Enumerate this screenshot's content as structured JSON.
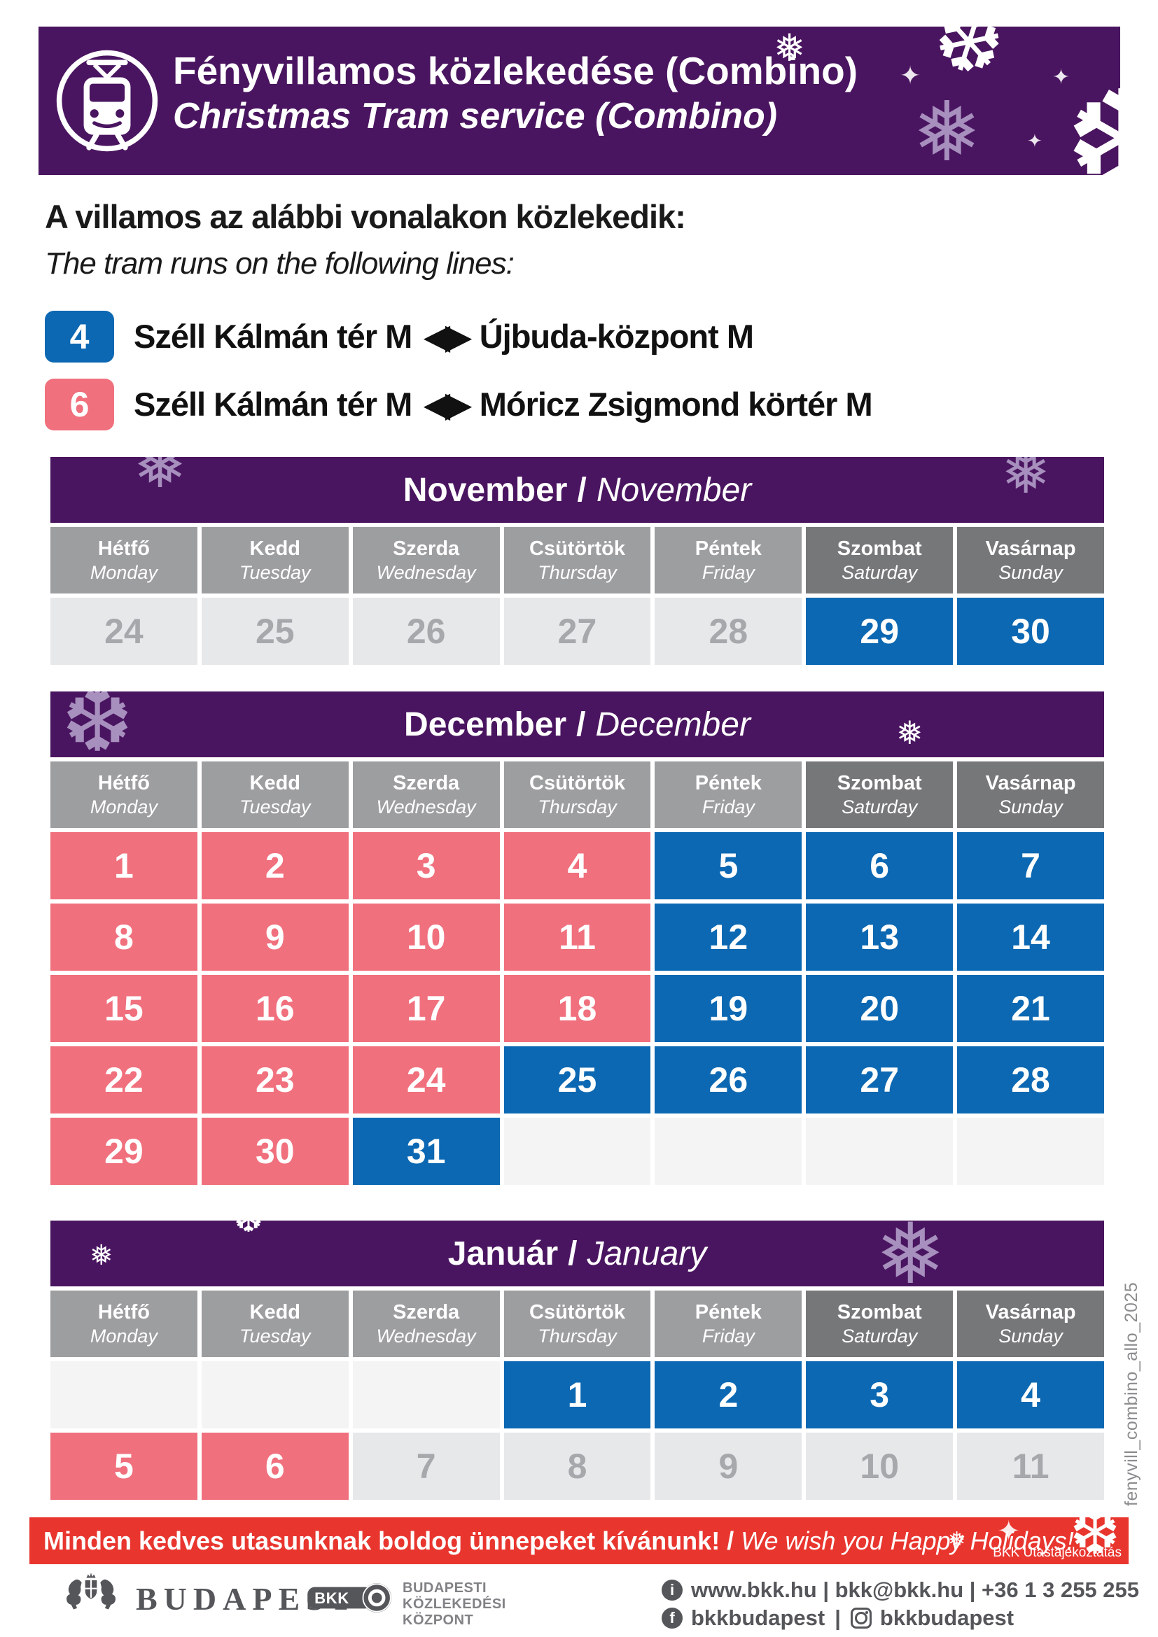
{
  "colors": {
    "purple": "#4A1560",
    "blue": "#0C68B2",
    "pink": "#F0707D",
    "red": "#E8362F",
    "header_gray": "#9D9EA0",
    "weekend_gray": "#767779",
    "inactive_bg": "#E7E8EA",
    "inactive_text": "#A6A8AC",
    "empty_bg": "#F4F4F5",
    "footer_gray": "#54565A",
    "lavender": "#A78FBE"
  },
  "icons": {
    "snowflake": "❅",
    "snowflake_alt": "❆",
    "sparkle": "✦",
    "tram": "tram-front-icon"
  },
  "header": {
    "title_hu": "Fényvillamos közlekedése (Combino)",
    "title_en": "Christmas Tram service (Combino)"
  },
  "intro": {
    "line_hu": "A villamos az alábbi vonalakon közlekedik:",
    "line_en": "The tram runs on the following lines:"
  },
  "lines": [
    {
      "number": "4",
      "from": "Széll Kálmán tér M",
      "arrow": "◀▶",
      "to": "Újbuda-központ M"
    },
    {
      "number": "6",
      "from": "Széll Kálmán tér M",
      "arrow": "◀▶",
      "to": "Móricz Zsigmond körtér M"
    }
  ],
  "day_headers": [
    {
      "hu": "Hétfő",
      "en": "Monday",
      "weekend": false
    },
    {
      "hu": "Kedd",
      "en": "Tuesday",
      "weekend": false
    },
    {
      "hu": "Szerda",
      "en": "Wednesday",
      "weekend": false
    },
    {
      "hu": "Csütörtök",
      "en": "Thursday",
      "weekend": false
    },
    {
      "hu": "Péntek",
      "en": "Friday",
      "weekend": false
    },
    {
      "hu": "Szombat",
      "en": "Saturday",
      "weekend": true
    },
    {
      "hu": "Vasárnap",
      "en": "Sunday",
      "weekend": true
    }
  ],
  "calendars": [
    {
      "id": "november",
      "title_hu": "November",
      "title_sep": "/",
      "title_en": "November",
      "rows": [
        [
          {
            "day": "24",
            "type": "inactive"
          },
          {
            "day": "25",
            "type": "inactive"
          },
          {
            "day": "26",
            "type": "inactive"
          },
          {
            "day": "27",
            "type": "inactive"
          },
          {
            "day": "28",
            "type": "inactive"
          },
          {
            "day": "29",
            "type": "blue"
          },
          {
            "day": "30",
            "type": "blue"
          }
        ]
      ]
    },
    {
      "id": "december",
      "title_hu": "December",
      "title_sep": "/",
      "title_en": "December",
      "rows": [
        [
          {
            "day": "1",
            "type": "pink"
          },
          {
            "day": "2",
            "type": "pink"
          },
          {
            "day": "3",
            "type": "pink"
          },
          {
            "day": "4",
            "type": "pink"
          },
          {
            "day": "5",
            "type": "blue"
          },
          {
            "day": "6",
            "type": "blue"
          },
          {
            "day": "7",
            "type": "blue"
          }
        ],
        [
          {
            "day": "8",
            "type": "pink"
          },
          {
            "day": "9",
            "type": "pink"
          },
          {
            "day": "10",
            "type": "pink"
          },
          {
            "day": "11",
            "type": "pink"
          },
          {
            "day": "12",
            "type": "blue"
          },
          {
            "day": "13",
            "type": "blue"
          },
          {
            "day": "14",
            "type": "blue"
          }
        ],
        [
          {
            "day": "15",
            "type": "pink"
          },
          {
            "day": "16",
            "type": "pink"
          },
          {
            "day": "17",
            "type": "pink"
          },
          {
            "day": "18",
            "type": "pink"
          },
          {
            "day": "19",
            "type": "blue"
          },
          {
            "day": "20",
            "type": "blue"
          },
          {
            "day": "21",
            "type": "blue"
          }
        ],
        [
          {
            "day": "22",
            "type": "pink"
          },
          {
            "day": "23",
            "type": "pink"
          },
          {
            "day": "24",
            "type": "pink"
          },
          {
            "day": "25",
            "type": "blue"
          },
          {
            "day": "26",
            "type": "blue"
          },
          {
            "day": "27",
            "type": "blue"
          },
          {
            "day": "28",
            "type": "blue"
          }
        ],
        [
          {
            "day": "29",
            "type": "pink"
          },
          {
            "day": "30",
            "type": "pink"
          },
          {
            "day": "31",
            "type": "blue"
          },
          {
            "day": "",
            "type": "empty"
          },
          {
            "day": "",
            "type": "empty"
          },
          {
            "day": "",
            "type": "empty"
          },
          {
            "day": "",
            "type": "empty"
          }
        ]
      ]
    },
    {
      "id": "january",
      "title_hu": "Január",
      "title_sep": "/",
      "title_en": "January",
      "rows": [
        [
          {
            "day": "",
            "type": "empty"
          },
          {
            "day": "",
            "type": "empty"
          },
          {
            "day": "",
            "type": "empty"
          },
          {
            "day": "1",
            "type": "blue"
          },
          {
            "day": "2",
            "type": "blue"
          },
          {
            "day": "3",
            "type": "blue"
          },
          {
            "day": "4",
            "type": "blue"
          }
        ],
        [
          {
            "day": "5",
            "type": "pink"
          },
          {
            "day": "6",
            "type": "pink"
          },
          {
            "day": "7",
            "type": "inactive"
          },
          {
            "day": "8",
            "type": "inactive"
          },
          {
            "day": "9",
            "type": "inactive"
          },
          {
            "day": "10",
            "type": "inactive"
          },
          {
            "day": "11",
            "type": "inactive"
          }
        ]
      ]
    }
  ],
  "red_banner": {
    "message_hu": "Minden kedves utasunknak boldog ünnepeket kívánunk!",
    "separator": "/",
    "message_en": "We wish you Happy Holidays!",
    "credit": "BKK Utastájékoztatás"
  },
  "footer": {
    "budapest_label": "BUDAPEST",
    "bkk_label": "BKK",
    "bkk_org_line1": "BUDAPESTI",
    "bkk_org_line2": "KÖZLEKEDÉSI",
    "bkk_org_line3": "KÖZPONT",
    "contact_line1": "www.bkk.hu | bkk@bkk.hu | +36 1 3 255 255",
    "facebook_handle": "bkkbudapest",
    "social_separator": "|",
    "instagram_handle": "bkkbudapest",
    "facebook_icon_letter": "f",
    "info_icon_letter": "i"
  },
  "side_caption": "fenyvill_combino_allo_2025"
}
